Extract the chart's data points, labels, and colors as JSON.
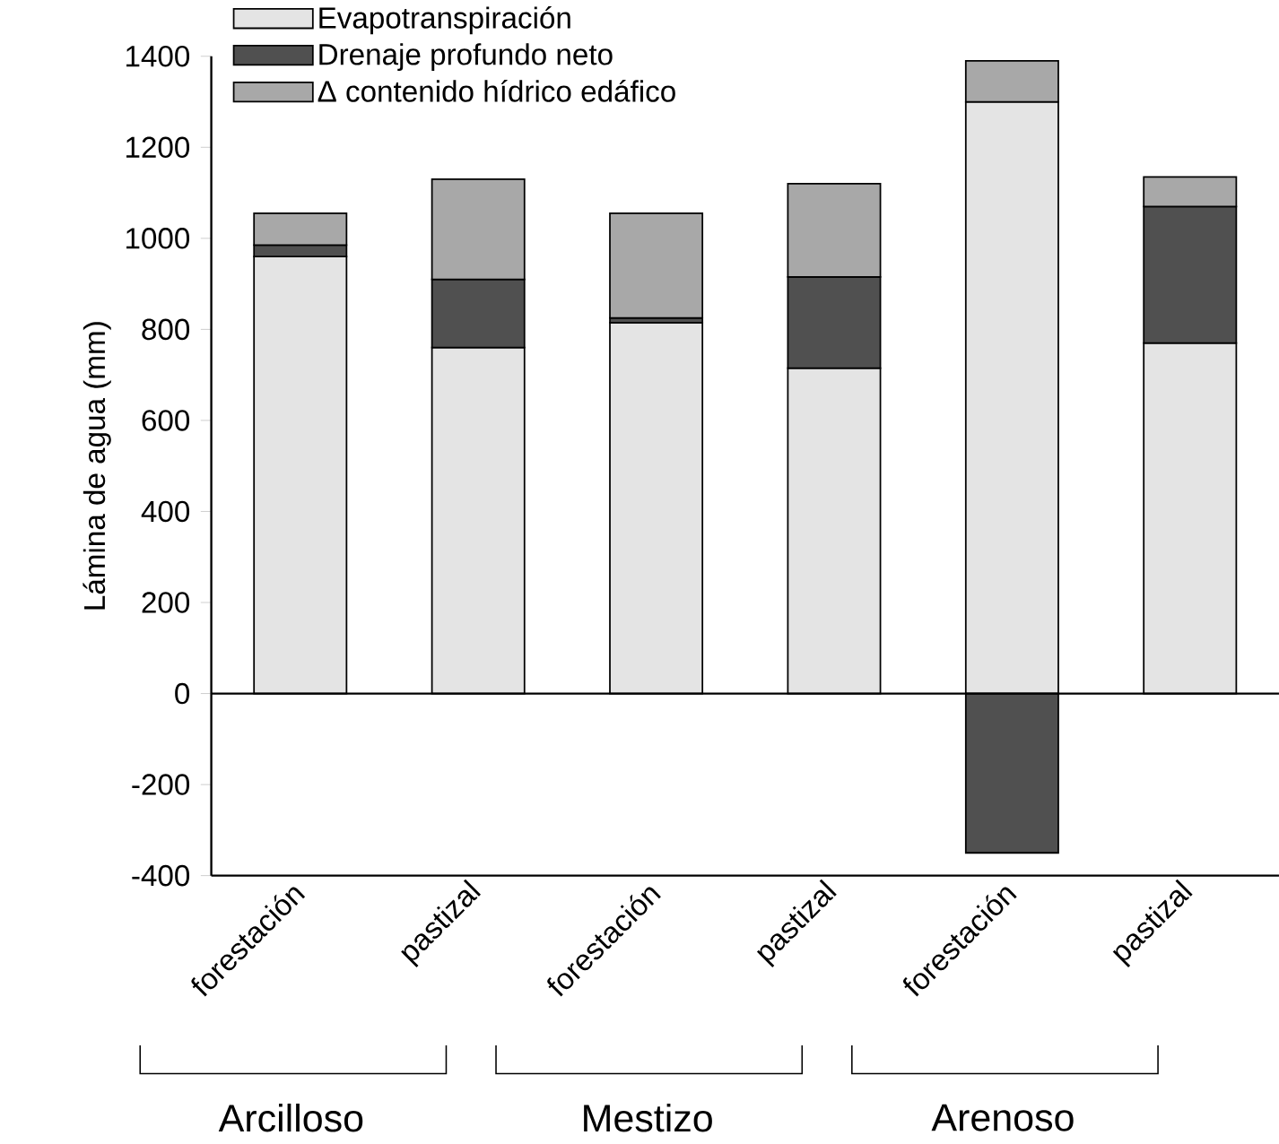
{
  "chart_data": {
    "type": "bar",
    "stacked": true,
    "ylabel": "Lámina de agua (mm)",
    "categories": [
      "forestación",
      "pastizal",
      "forestación",
      "pastizal",
      "forestación",
      "pastizal"
    ],
    "series": [
      {
        "name": "Evapotranspiración",
        "color": "#e4e4e4",
        "values": [
          960,
          760,
          815,
          715,
          1300,
          770
        ]
      },
      {
        "name": "Drenaje profundo neto",
        "color": "#505050",
        "values": [
          25,
          150,
          10,
          200,
          -350,
          300
        ]
      },
      {
        "name": "Δ contenido hídrico edáfico",
        "color": "#a8a8a8",
        "values": [
          70,
          220,
          230,
          205,
          90,
          65
        ]
      }
    ],
    "ylim": [
      -400,
      1400
    ],
    "yticks": [
      -400,
      -200,
      0,
      200,
      400,
      600,
      800,
      1000,
      1200,
      1400
    ],
    "ref_lines": [
      {
        "axis": "y",
        "value": 0
      }
    ],
    "annotations": [
      "Arcilloso",
      "Mestizo",
      "Arenoso"
    ],
    "legend": "top left",
    "grid": false
  }
}
